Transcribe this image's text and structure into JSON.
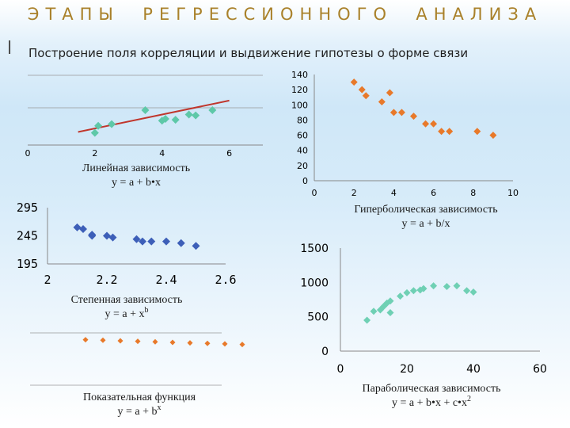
{
  "header": {
    "title": "ЭТАПЫ  РЕГРЕССИОННОГО  АНАЛИЗА",
    "bullet": "l",
    "subtitle": "Построение поля корреляции и выдвижение гипотезы о форме  связи"
  },
  "colors": {
    "title": "#a9812a",
    "linear": "#5ec8a8",
    "trend": "#c0362c",
    "hyperbolic": "#e8792a",
    "power": "#3d5fb8",
    "exponential": "#e8792a",
    "parabolic": "#6fd0b4",
    "axis": "#888888"
  },
  "chart_data": [
    {
      "id": "linear",
      "type": "scatter",
      "title": "Линейная зависимость",
      "formula": "y = a + b•x",
      "xlim": [
        0,
        7
      ],
      "ylim": [
        0,
        4
      ],
      "xticks": [
        "0",
        "2",
        "4",
        "6"
      ],
      "yticks": [],
      "trendline": {
        "x": [
          1.5,
          6.0
        ],
        "y": [
          0.75,
          2.55
        ]
      },
      "x": [
        2.0,
        2.1,
        2.5,
        3.5,
        4.0,
        4.1,
        4.4,
        4.8,
        5.0,
        5.5
      ],
      "y": [
        0.7,
        1.1,
        1.2,
        2.0,
        1.4,
        1.5,
        1.45,
        1.75,
        1.7,
        2.0
      ]
    },
    {
      "id": "hyperbolic",
      "type": "scatter",
      "title": "Гиперболическая зависимость",
      "formula": "y = a + b/x",
      "xlim": [
        0,
        10
      ],
      "ylim": [
        0,
        140
      ],
      "xticks": [
        "0",
        "2",
        "4",
        "6",
        "8",
        "10"
      ],
      "yticks": [
        "0",
        "20",
        "40",
        "60",
        "80",
        "100",
        "120",
        "140"
      ],
      "x": [
        2.0,
        2.4,
        2.6,
        3.4,
        3.8,
        4.0,
        4.4,
        5.0,
        5.6,
        6.0,
        6.4,
        6.8,
        8.2,
        9.0
      ],
      "y": [
        130,
        120,
        112,
        104,
        116,
        90,
        90,
        85,
        75,
        75,
        65,
        65,
        65,
        60
      ]
    },
    {
      "id": "power",
      "type": "scatter",
      "title": "Степенная зависимость",
      "formula": "y = a + x",
      "formula_sup": "b",
      "xlim": [
        2.0,
        2.6
      ],
      "ylim": [
        195,
        295
      ],
      "xticks": [
        "2",
        "2.2",
        "2.4",
        "2.6"
      ],
      "yticks": [
        "195",
        "245",
        "295"
      ],
      "x": [
        2.1,
        2.12,
        2.15,
        2.15,
        2.2,
        2.22,
        2.3,
        2.32,
        2.35,
        2.4,
        2.45,
        2.5
      ],
      "y": [
        260,
        257,
        247,
        245,
        245,
        242,
        239,
        235,
        235,
        235,
        232,
        227
      ]
    },
    {
      "id": "exponential",
      "type": "scatter",
      "title": "Показательная функция",
      "formula": "y = a + b",
      "formula_sup": "x",
      "xlim": [
        0,
        11
      ],
      "ylim": [
        0,
        10
      ],
      "x": [
        1,
        2,
        3,
        4,
        5,
        6,
        7,
        8,
        9,
        10
      ],
      "y": [
        9.6,
        9.5,
        9.4,
        9.3,
        9.2,
        9.1,
        9.0,
        8.9,
        8.8,
        8.7
      ]
    },
    {
      "id": "parabolic",
      "type": "scatter",
      "title": "Параболическая зависимость",
      "formula": "y = a + b•x + c•x",
      "formula_sup": "2",
      "xlim": [
        0,
        60
      ],
      "ylim": [
        0,
        1500
      ],
      "xticks": [
        "0",
        "20",
        "40",
        "60"
      ],
      "yticks": [
        "0",
        "500",
        "1000",
        "1500"
      ],
      "x": [
        8,
        10,
        12,
        13,
        14,
        15,
        15,
        18,
        20,
        22,
        24,
        25,
        28,
        32,
        35,
        38,
        40
      ],
      "y": [
        450,
        580,
        600,
        650,
        700,
        560,
        730,
        800,
        850,
        880,
        890,
        910,
        950,
        940,
        950,
        880,
        860
      ]
    }
  ]
}
